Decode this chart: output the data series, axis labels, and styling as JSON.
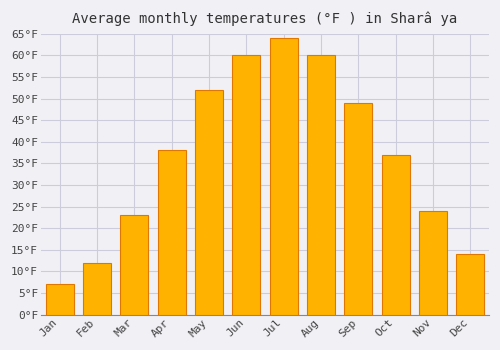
{
  "title": "Average monthly temperatures (°F ) in Sharâ ya",
  "months": [
    "Jan",
    "Feb",
    "Mar",
    "Apr",
    "May",
    "Jun",
    "Jul",
    "Aug",
    "Sep",
    "Oct",
    "Nov",
    "Dec"
  ],
  "values": [
    7,
    12,
    23,
    38,
    52,
    60,
    64,
    60,
    49,
    37,
    24,
    14
  ],
  "bar_color_main": "#FFB300",
  "bar_color_edge": "#E07800",
  "ylim": [
    0,
    65
  ],
  "yticks": [
    0,
    5,
    10,
    15,
    20,
    25,
    30,
    35,
    40,
    45,
    50,
    55,
    60,
    65
  ],
  "ytick_labels": [
    "0°F",
    "5°F",
    "10°F",
    "15°F",
    "20°F",
    "25°F",
    "30°F",
    "35°F",
    "40°F",
    "45°F",
    "50°F",
    "55°F",
    "60°F",
    "65°F"
  ],
  "background_color": "#F0F0F5",
  "plot_bg_color": "#F0F0F5",
  "grid_color": "#CCCCDD",
  "title_fontsize": 10,
  "tick_fontsize": 8
}
